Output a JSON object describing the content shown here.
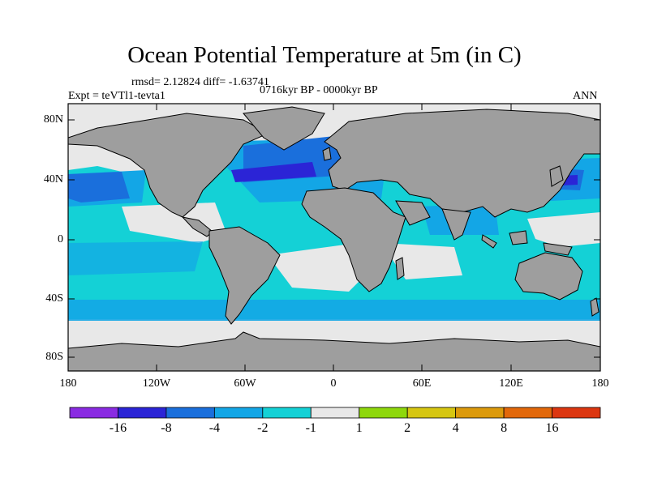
{
  "figure": {
    "title": "Ocean Potential Temperature at 5m (in C)",
    "stats": "rmsd= 2.12824 diff= -1.63741",
    "experiment": "Expt = teVTl1-tevta1",
    "period": "0716kyr BP - 0000kyr BP",
    "season": "ANN"
  },
  "axes": {
    "lat_ticks": [
      "80N",
      "40N",
      "0",
      "40S",
      "80S"
    ],
    "lon_ticks": [
      "180",
      "120W",
      "60W",
      "0",
      "60E",
      "120E",
      "180"
    ]
  },
  "colorbar": {
    "colors": [
      "#8a2be2",
      "#2b24d6",
      "#1a6fdc",
      "#13a6e6",
      "#14d1d6",
      "#e8e8e8",
      "#8ed80c",
      "#d6c612",
      "#dc9a0c",
      "#e2680a",
      "#dc3610"
    ],
    "labels": [
      "-16",
      "-8",
      "-4",
      "-2",
      "-1",
      "1",
      "2",
      "4",
      "8",
      "16"
    ]
  },
  "map_colors": {
    "land": "#9e9e9e",
    "grey_band": "#e8e8e8",
    "cyan": "#14d1d6",
    "light_blue": "#13a6e6",
    "blue": "#1a6fdc",
    "dark_blue": "#2b24d6",
    "green": "#8ed80c",
    "yellow": "#d6c612"
  }
}
